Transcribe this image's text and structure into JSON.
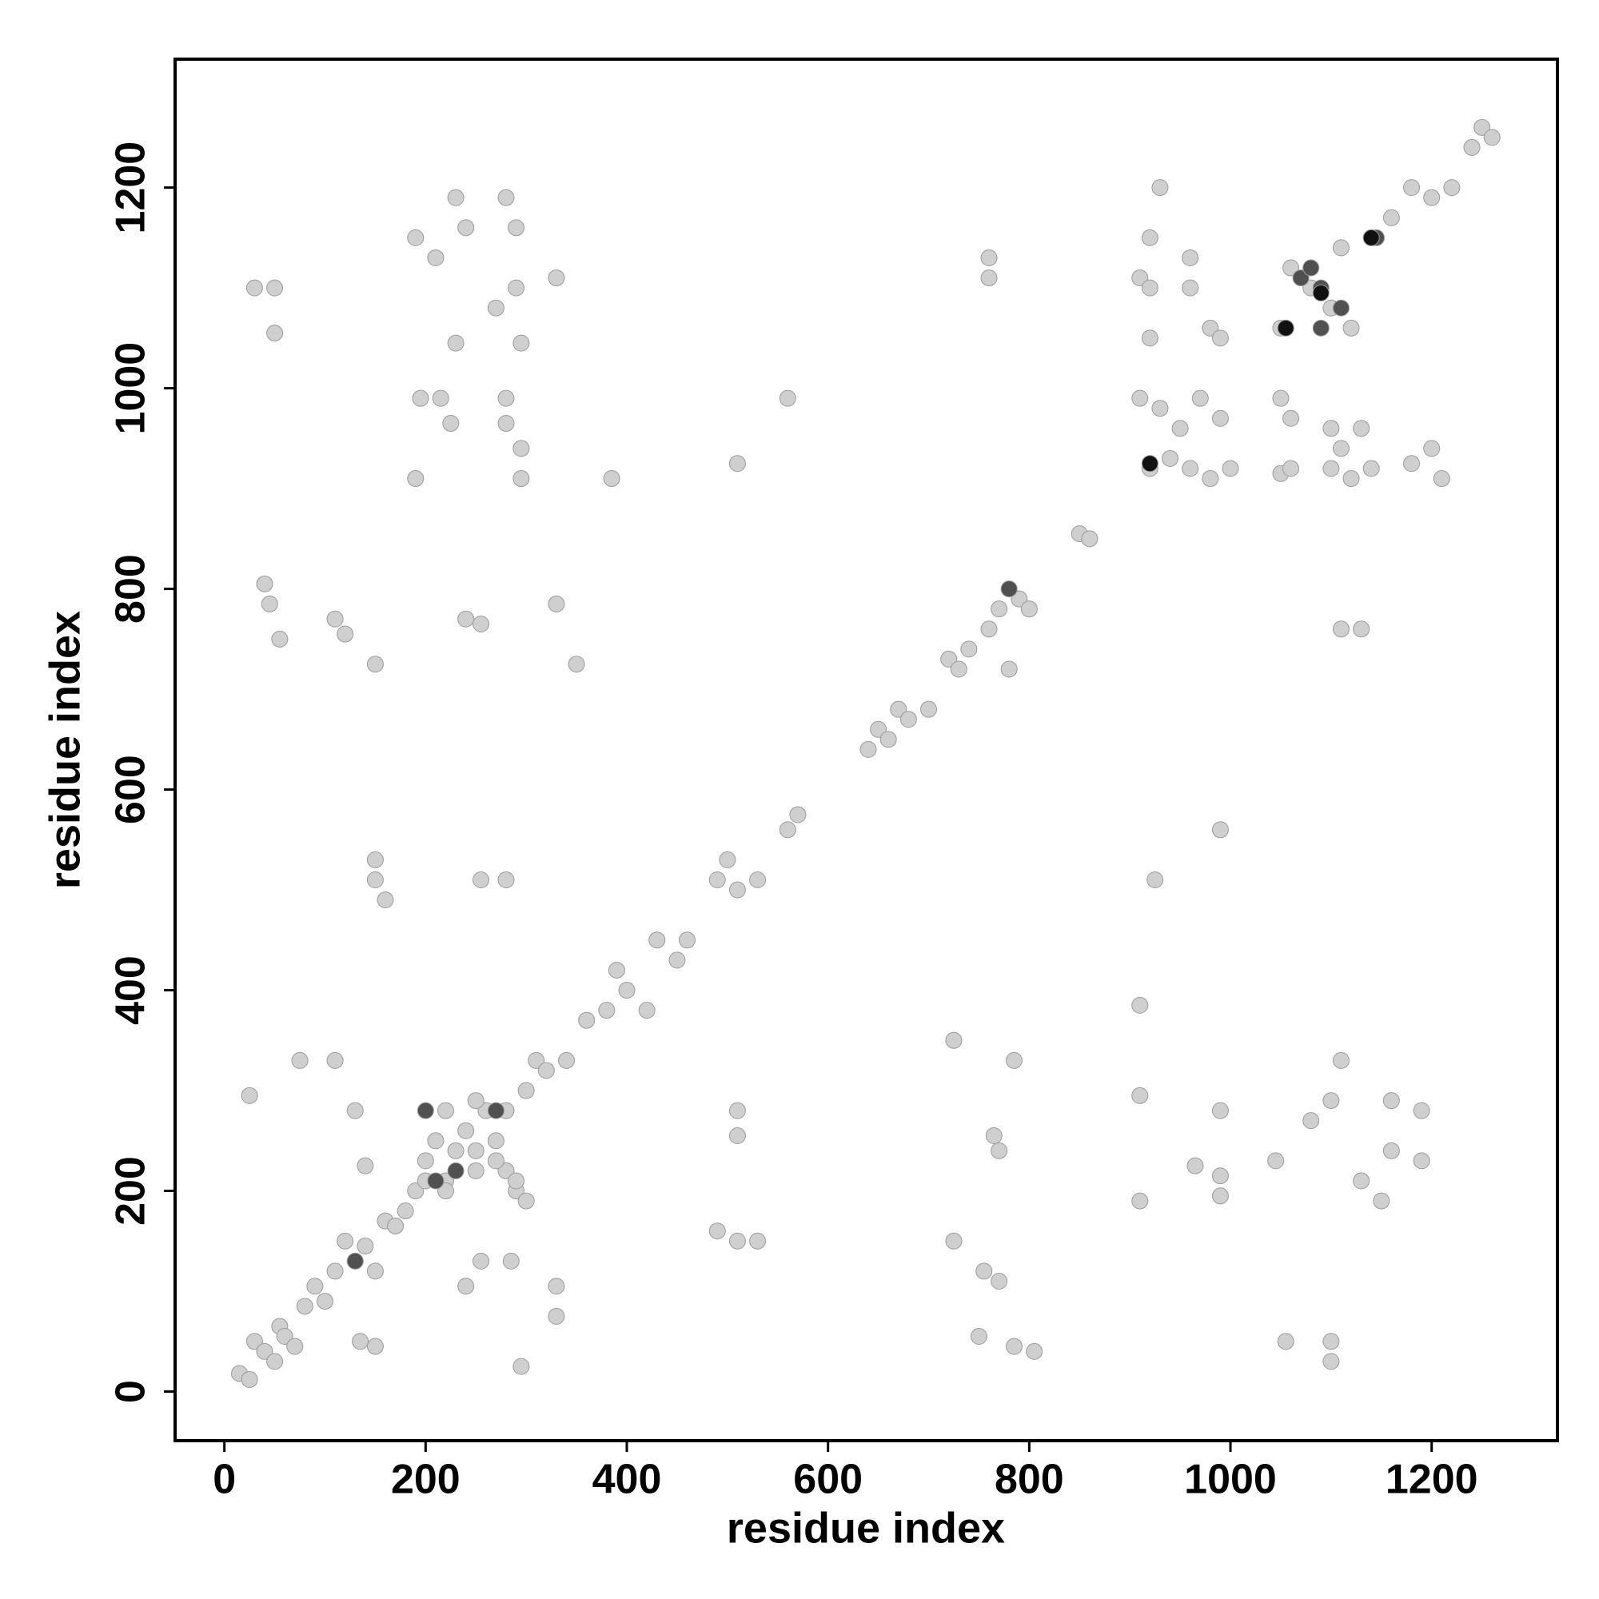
{
  "chart_data": {
    "type": "scatter",
    "x_label": "residue index",
    "y_label": "residue index",
    "xlim": [
      -49,
      1325
    ],
    "ylim": [
      -49,
      1328
    ],
    "xticks": [
      0,
      200,
      400,
      600,
      800,
      1000,
      1200
    ],
    "yticks": [
      0,
      200,
      400,
      600,
      800,
      1000,
      1200
    ],
    "series": [
      {
        "color": "#cfcfcf",
        "x": [
          15,
          25,
          30,
          40,
          50,
          55,
          60,
          70,
          80,
          90,
          100,
          110,
          120,
          130,
          140,
          150,
          160,
          170,
          180,
          190,
          200,
          210,
          220,
          230,
          240,
          250,
          260,
          270,
          280,
          290,
          300,
          310,
          320,
          340,
          360,
          380,
          390,
          400,
          420,
          430,
          450,
          460,
          490,
          500,
          510,
          530,
          560,
          570,
          640,
          650,
          660,
          670,
          680,
          700,
          720,
          730,
          740,
          760,
          770,
          780,
          790,
          800,
          850,
          860,
          30,
          50,
          50,
          190,
          210,
          230,
          240,
          270,
          280,
          290,
          290,
          330,
          230,
          295,
          195,
          215,
          225,
          280,
          280,
          295,
          190,
          295,
          385,
          510,
          560,
          760,
          760,
          1100,
          1100,
          1055,
          1150,
          1130,
          1190,
          1160,
          1080,
          1190,
          1160,
          1100,
          1110,
          1045,
          990,
          990,
          965,
          990,
          910,
          910,
          910,
          925,
          990,
          1110,
          1130,
          40,
          45,
          55,
          110,
          120,
          150,
          240,
          255,
          330,
          350,
          150,
          160,
          255,
          280,
          150,
          805,
          785,
          750,
          770,
          755,
          725,
          770,
          765,
          785,
          725,
          510,
          490,
          510,
          510,
          530,
          25,
          75,
          110,
          130,
          140,
          135,
          150,
          240,
          255,
          285,
          295,
          330,
          330,
          910,
          920,
          920,
          930,
          960,
          960,
          980,
          990,
          920,
          910,
          930,
          950,
          970,
          990,
          920,
          940,
          960,
          980,
          1000,
          1050,
          1060,
          1080,
          1100,
          1110,
          1120,
          1140,
          1160,
          1180,
          1200,
          1220,
          1250,
          1260,
          1240,
          1050,
          1060,
          1100,
          1130,
          1110,
          1140,
          1180,
          1200,
          1210,
          1050,
          1100,
          1120,
          1060,
          200,
          220,
          250,
          270,
          290,
          300,
          220,
          250,
          280
        ],
        "values": [
          18,
          12,
          50,
          40,
          30,
          65,
          55,
          45,
          85,
          105,
          90,
          120,
          150,
          130,
          145,
          120,
          170,
          165,
          180,
          200,
          230,
          250,
          210,
          240,
          260,
          220,
          280,
          250,
          220,
          200,
          300,
          330,
          320,
          330,
          370,
          380,
          420,
          400,
          380,
          450,
          430,
          450,
          510,
          530,
          500,
          510,
          560,
          575,
          640,
          660,
          650,
          680,
          670,
          680,
          730,
          720,
          740,
          760,
          780,
          720,
          790,
          780,
          855,
          850,
          1100,
          1100,
          1055,
          1150,
          1130,
          1190,
          1160,
          1080,
          1190,
          1160,
          1100,
          1110,
          1045,
          1045,
          990,
          990,
          965,
          965,
          990,
          940,
          910,
          910,
          910,
          925,
          990,
          1110,
          1130,
          30,
          50,
          50,
          190,
          210,
          230,
          240,
          270,
          280,
          290,
          290,
          330,
          230,
          195,
          215,
          225,
          280,
          190,
          295,
          385,
          510,
          560,
          760,
          760,
          805,
          785,
          750,
          770,
          755,
          725,
          770,
          765,
          785,
          725,
          510,
          490,
          510,
          510,
          530,
          40,
          45,
          55,
          110,
          120,
          150,
          240,
          255,
          330,
          350,
          150,
          160,
          255,
          280,
          150,
          295,
          330,
          330,
          280,
          225,
          50,
          45,
          105,
          130,
          130,
          25,
          105,
          75,
          1110,
          1100,
          1150,
          1200,
          1130,
          1100,
          1060,
          1050,
          1050,
          990,
          980,
          960,
          990,
          970,
          920,
          930,
          920,
          910,
          920,
          1060,
          1120,
          1100,
          1080,
          1140,
          1060,
          1150,
          1170,
          1200,
          1190,
          1200,
          1260,
          1250,
          1240,
          990,
          970,
          960,
          960,
          940,
          920,
          925,
          940,
          910,
          915,
          920,
          910,
          920,
          210,
          200,
          240,
          230,
          210,
          190,
          280,
          290,
          280
        ]
      },
      {
        "color": "#505050",
        "x": [
          1145,
          1055,
          920,
          1090,
          1070,
          1110,
          210,
          200,
          270,
          130,
          780,
          1090,
          230,
          1080
        ],
        "values": [
          1150,
          1060,
          925,
          1100,
          1110,
          1080,
          210,
          280,
          280,
          130,
          800,
          1060,
          220,
          1120
        ]
      },
      {
        "color": "#111111",
        "x": [
          1140,
          1055,
          920,
          1090
        ],
        "values": [
          1150,
          1060,
          925,
          1095
        ]
      }
    ]
  }
}
